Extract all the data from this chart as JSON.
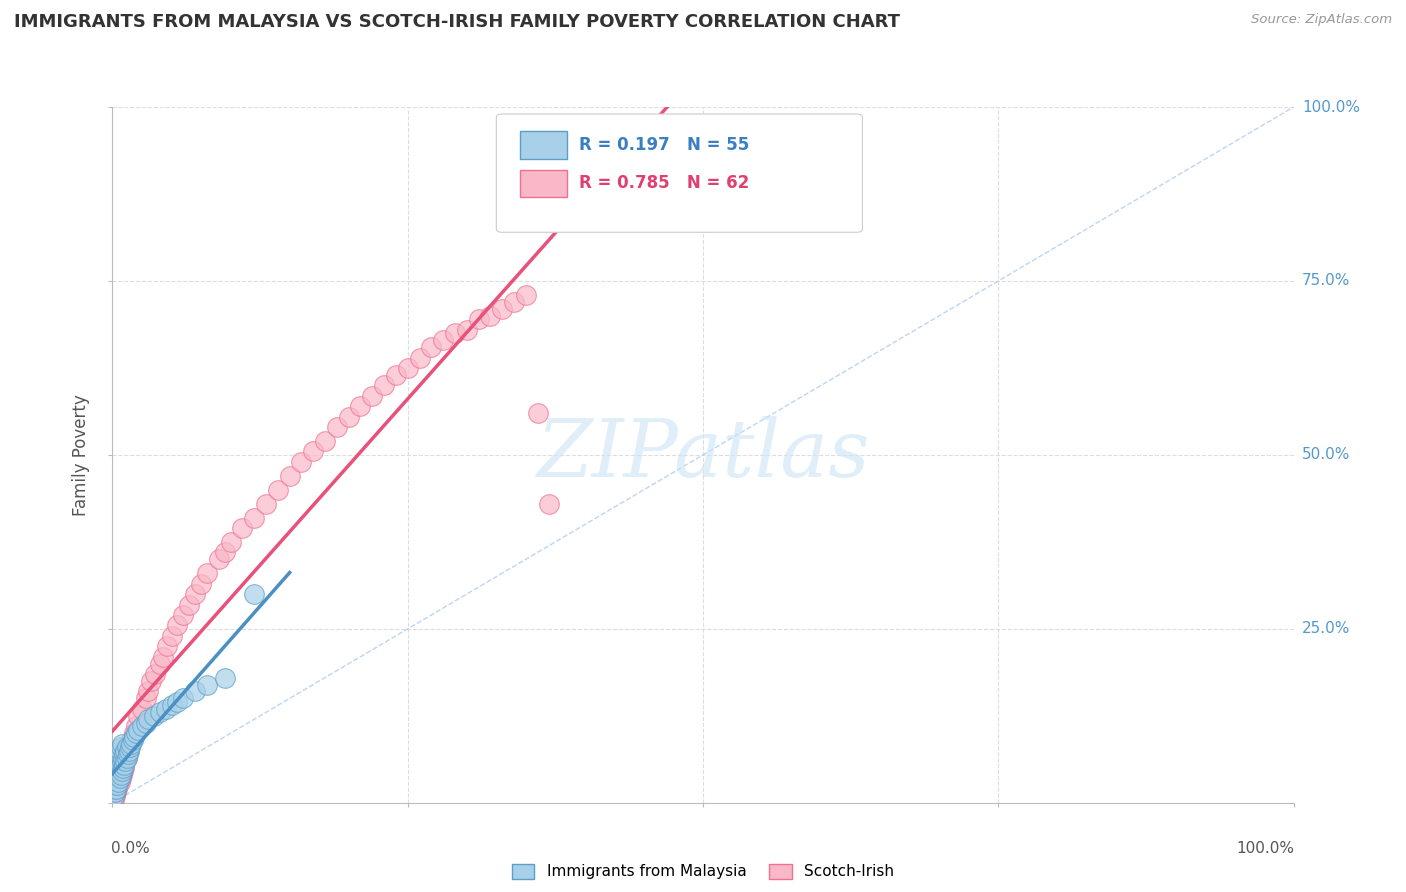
{
  "title": "IMMIGRANTS FROM MALAYSIA VS SCOTCH-IRISH FAMILY POVERTY CORRELATION CHART",
  "source": "Source: ZipAtlas.com",
  "ylabel": "Family Poverty",
  "legend_label1": "Immigrants from Malaysia",
  "legend_label2": "Scotch-Irish",
  "R1": 0.197,
  "N1": 55,
  "R2": 0.785,
  "N2": 62,
  "color_blue": "#a8d0e8",
  "color_blue_edge": "#5a9ec9",
  "color_blue_line": "#4a90c4",
  "color_pink": "#f9b8c8",
  "color_pink_edge": "#f07090",
  "color_pink_line": "#e8527a",
  "color_diag": "#aaccee",
  "blue_scatter_x": [
    0.001,
    0.001,
    0.001,
    0.001,
    0.002,
    0.002,
    0.002,
    0.002,
    0.003,
    0.003,
    0.003,
    0.004,
    0.004,
    0.004,
    0.005,
    0.005,
    0.005,
    0.006,
    0.006,
    0.006,
    0.007,
    0.007,
    0.007,
    0.008,
    0.008,
    0.008,
    0.009,
    0.009,
    0.01,
    0.01,
    0.011,
    0.011,
    0.012,
    0.012,
    0.013,
    0.014,
    0.015,
    0.016,
    0.017,
    0.018,
    0.02,
    0.022,
    0.025,
    0.028,
    0.03,
    0.035,
    0.04,
    0.045,
    0.05,
    0.055,
    0.06,
    0.07,
    0.08,
    0.095,
    0.12
  ],
  "blue_scatter_y": [
    0.01,
    0.02,
    0.03,
    0.05,
    0.015,
    0.025,
    0.04,
    0.06,
    0.02,
    0.035,
    0.055,
    0.025,
    0.04,
    0.065,
    0.03,
    0.045,
    0.07,
    0.035,
    0.05,
    0.075,
    0.04,
    0.055,
    0.08,
    0.045,
    0.06,
    0.085,
    0.05,
    0.065,
    0.055,
    0.07,
    0.06,
    0.075,
    0.065,
    0.08,
    0.07,
    0.075,
    0.08,
    0.085,
    0.09,
    0.095,
    0.1,
    0.105,
    0.11,
    0.115,
    0.12,
    0.125,
    0.13,
    0.135,
    0.14,
    0.145,
    0.15,
    0.16,
    0.17,
    0.18,
    0.3
  ],
  "pink_scatter_x": [
    0.001,
    0.002,
    0.003,
    0.004,
    0.005,
    0.006,
    0.007,
    0.008,
    0.009,
    0.01,
    0.011,
    0.012,
    0.014,
    0.016,
    0.018,
    0.02,
    0.022,
    0.025,
    0.028,
    0.03,
    0.033,
    0.036,
    0.04,
    0.043,
    0.046,
    0.05,
    0.055,
    0.06,
    0.065,
    0.07,
    0.075,
    0.08,
    0.09,
    0.095,
    0.1,
    0.11,
    0.12,
    0.13,
    0.14,
    0.15,
    0.16,
    0.17,
    0.18,
    0.19,
    0.2,
    0.21,
    0.22,
    0.23,
    0.24,
    0.25,
    0.26,
    0.27,
    0.28,
    0.29,
    0.3,
    0.31,
    0.32,
    0.33,
    0.34,
    0.35,
    0.36,
    0.37
  ],
  "pink_scatter_y": [
    0.005,
    0.01,
    0.015,
    0.02,
    0.025,
    0.03,
    0.035,
    0.04,
    0.045,
    0.05,
    0.06,
    0.065,
    0.075,
    0.09,
    0.1,
    0.11,
    0.125,
    0.135,
    0.15,
    0.16,
    0.175,
    0.185,
    0.2,
    0.21,
    0.225,
    0.24,
    0.255,
    0.27,
    0.285,
    0.3,
    0.315,
    0.33,
    0.35,
    0.36,
    0.375,
    0.395,
    0.41,
    0.43,
    0.45,
    0.47,
    0.49,
    0.505,
    0.52,
    0.54,
    0.555,
    0.57,
    0.585,
    0.6,
    0.615,
    0.625,
    0.64,
    0.655,
    0.665,
    0.675,
    0.68,
    0.695,
    0.7,
    0.71,
    0.72,
    0.73,
    0.56,
    0.43
  ]
}
